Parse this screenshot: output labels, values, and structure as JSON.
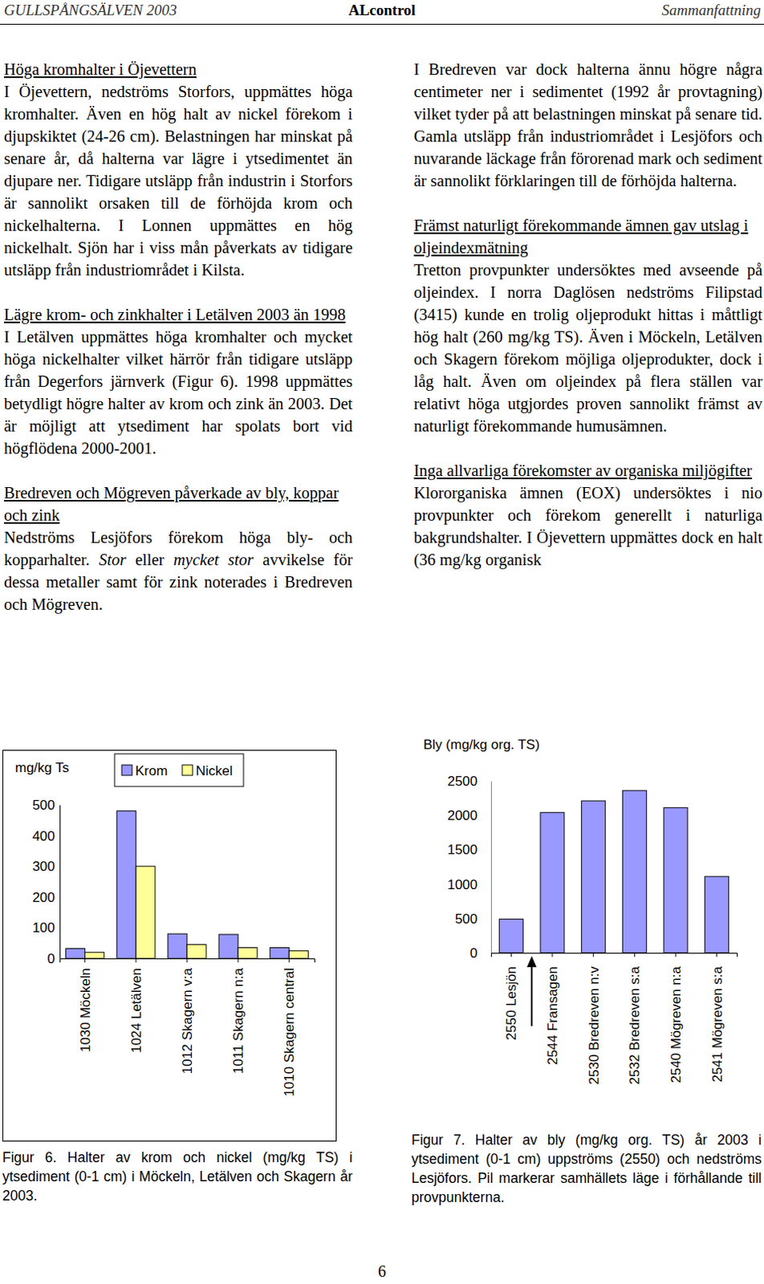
{
  "document": {
    "header": {
      "left": "GULLSPÅNGSÄLVEN 2003",
      "center": "ALcontrol",
      "right": "Sammanfattning"
    },
    "left_column": [
      {
        "heading": "Höga kromhalter i Öjevettern",
        "body": [
          {
            "text": "I Öjevettern, nedströms Storfors, uppmättes höga kromhalter. Även en hög halt av nickel förekom i djupskiktet (24-26 cm). Belastningen har minskat på senare år, då halterna var lägre i ytsedimentet än djupare ner. Tidigare utsläpp från industrin i Storfors är sannolikt orsaken till de förhöjda krom och nickelhalterna. I Lonnen uppmättes en hög nickelhalt. Sjön har i viss mån påverkats av tidigare utsläpp från industriområdet i Kilsta."
          }
        ]
      },
      {
        "heading": "Lägre krom- och zinkhalter i Letälven 2003 än 1998",
        "body": [
          {
            "text": "I Letälven uppmättes höga kromhalter och mycket höga nickelhalter vilket härrör från tidigare utsläpp från Degerfors järnverk (Figur 6). 1998 uppmättes betydligt högre halter av krom och zink än 2003. Det är möjligt att ytsediment har spolats bort vid högflödena 2000-2001."
          }
        ]
      },
      {
        "heading": "Bredreven och Mögreven påverkade av bly, koppar och zink",
        "body": [
          {
            "text": "Nedströms Lesjöfors förekom höga bly- och kopparhalter. "
          },
          {
            "text": "Stor",
            "italic": true
          },
          {
            "text": " eller "
          },
          {
            "text": "mycket stor",
            "italic": true
          },
          {
            "text": " avvikelse för dessa metaller samt för zink noterades i Bredreven och Mögreven."
          }
        ]
      }
    ],
    "right_column": [
      {
        "body": [
          {
            "text": "I Bredreven var dock halterna ännu högre några centimeter ner i sedimentet (1992 år provtagning) vilket tyder på att belastningen minskat på senare tid. Gamla utsläpp från industriområdet i Lesjöfors och nuvarande läckage från förorenad mark och sediment är sannolikt förklaringen till de förhöjda halterna."
          }
        ]
      },
      {
        "heading": "Främst naturligt förekommande ämnen gav utslag i oljeindexmätning",
        "body": [
          {
            "text": "Tretton provpunkter undersöktes med avseende på oljeindex. I norra Daglösen nedströms Filipstad (3415) kunde en trolig oljeprodukt hittas i måttligt hög halt (260 mg/kg TS). Även i Möckeln, Letälven och Skagern förekom möjliga oljeprodukter, dock i låg halt. Även om oljeindex på flera ställen var relativt höga utgjordes proven sannolikt främst av naturligt förekommande humusämnen."
          }
        ]
      },
      {
        "heading": "Inga allvarliga förekomster av organiska miljögifter",
        "body": [
          {
            "text": "Klororganiska ämnen (EOX) undersöktes i nio provpunkter och förekom generellt i naturliga bakgrundshalter. I Öjevettern uppmättes dock en halt (36 mg/kg organisk"
          }
        ]
      }
    ],
    "page_number": "6"
  },
  "chart_data": [
    {
      "type": "bar",
      "ylabel": "mg/kg  Ts",
      "categories": [
        "1030 Möckeln",
        "1024 Letälven",
        "1012 Skagern v:a",
        "1011 Skagern n:a",
        "1010 Skagern central"
      ],
      "series": [
        {
          "name": "Krom",
          "color": "#9999ff",
          "values": [
            32,
            480,
            80,
            78,
            35
          ]
        },
        {
          "name": "Nickel",
          "color": "#ffff99",
          "values": [
            20,
            300,
            45,
            35,
            25
          ]
        }
      ],
      "ylim": [
        0,
        500
      ],
      "yticks": [
        0,
        100,
        200,
        300,
        400,
        500
      ],
      "legend": "top",
      "caption": "Figur 6. Halter av krom och nickel (mg/kg TS) i ytsediment (0-1 cm) i Möckeln, Letälven och Skagern år 2003."
    },
    {
      "type": "bar",
      "title": "Bly (mg/kg org. TS)",
      "categories": [
        "2550 Lesjön",
        "2544 Fransagen",
        "2530 Bredreven n:v",
        "2532 Bredreven s:a",
        "2540 Mögreven n:a",
        "2541 Mögreven s:a"
      ],
      "values": [
        490,
        2040,
        2210,
        2360,
        2110,
        1110
      ],
      "color": "#9999ff",
      "ylim": [
        0,
        2500
      ],
      "yticks": [
        0,
        500,
        1000,
        1500,
        2000,
        2500
      ],
      "caption": "Figur 7. Halter av bly (mg/kg org. TS) år 2003 i ytsediment (0-1 cm) uppströms (2550) och nedströms Lesjöfors. Pil markerar samhällets läge i förhållande till provpunkterna."
    }
  ]
}
